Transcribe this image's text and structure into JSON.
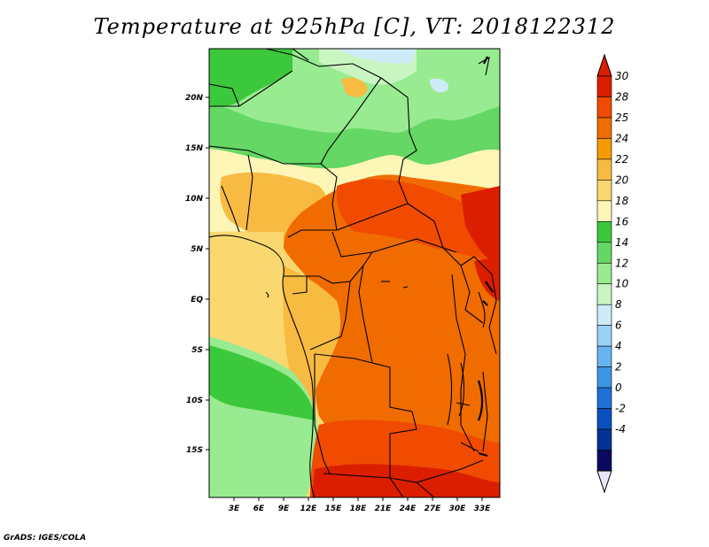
{
  "title": "Temperature at 925hPa [C], VT: 2018122312",
  "credit": "GrADS: IGES/COLA",
  "map": {
    "lat_ticks": [
      "20N",
      "15N",
      "10N",
      "5N",
      "EQ",
      "5S",
      "10S",
      "15S"
    ],
    "lon_ticks": [
      "3E",
      "6E",
      "9E",
      "12E",
      "15E",
      "18E",
      "21E",
      "24E",
      "27E",
      "30E",
      "33E"
    ]
  },
  "colorbar": {
    "labels": [
      "30",
      "28",
      "25",
      "24",
      "22",
      "20",
      "18",
      "16",
      "14",
      "12",
      "10",
      "8",
      "6",
      "4",
      "2",
      "0",
      "-2",
      "-4"
    ],
    "colors": [
      "#dc1e00",
      "#f04b00",
      "#f06c00",
      "#f79a00",
      "#f8bb42",
      "#fad86f",
      "#fef6b7",
      "#3cc83c",
      "#64d764",
      "#98eb90",
      "#c9f5c0",
      "#cdecf8",
      "#98d2f7",
      "#66b4f0",
      "#3c96e6",
      "#2070d8",
      "#0a50c0",
      "#05329a",
      "#0a0a60"
    ],
    "over_color": "#dc1e00",
    "under_color": "#e8e6fa"
  }
}
